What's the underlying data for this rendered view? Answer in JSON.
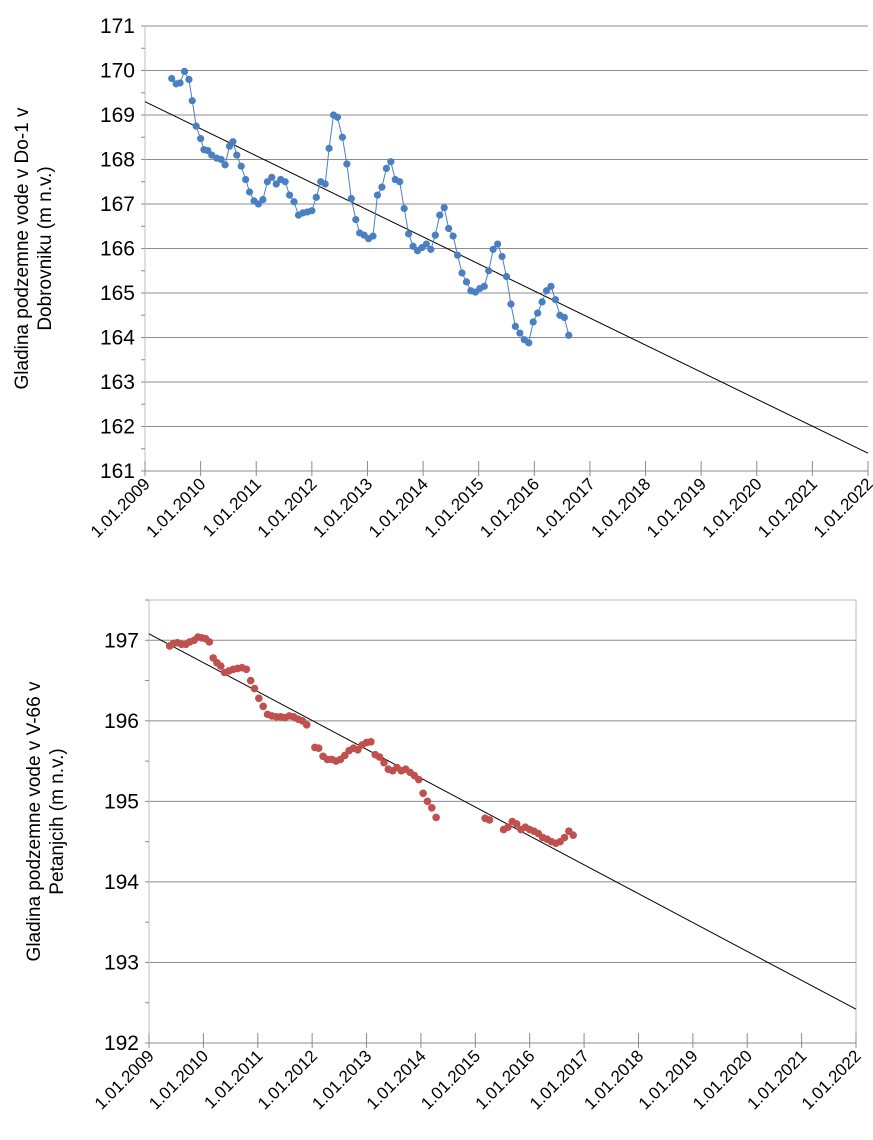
{
  "chart_data": [
    {
      "type": "scatter",
      "ylabel_lines": [
        "Gladina podzemne vode v Do-1 v",
        "Dobrovniku (m n.v.)"
      ],
      "ylim": [
        161,
        171
      ],
      "yticks": [
        161,
        162,
        163,
        164,
        165,
        166,
        167,
        168,
        169,
        170,
        171
      ],
      "xlim": [
        2009.0,
        2022.0
      ],
      "xticks": [
        "1.01.2009",
        "1.01.2010",
        "1.01.2011",
        "1.01.2012",
        "1.01.2013",
        "1.01.2014",
        "1.01.2015",
        "1.01.2016",
        "1.01.2017",
        "1.01.2018",
        "1.01.2019",
        "1.01.2020",
        "1.01.2021",
        "1.01.2022"
      ],
      "grid": "horizontal",
      "legend": "none",
      "series": [
        {
          "color": "#4a7fc1",
          "marker": "circle",
          "connected": true,
          "points": [
            [
              2009.48,
              169.82
            ],
            [
              2009.56,
              169.7
            ],
            [
              2009.63,
              169.72
            ],
            [
              2009.71,
              169.98
            ],
            [
              2009.79,
              169.8
            ],
            [
              2009.85,
              169.32
            ],
            [
              2009.92,
              168.75
            ],
            [
              2010.0,
              168.47
            ],
            [
              2010.06,
              168.22
            ],
            [
              2010.13,
              168.2
            ],
            [
              2010.2,
              168.1
            ],
            [
              2010.29,
              168.03
            ],
            [
              2010.37,
              168.0
            ],
            [
              2010.44,
              167.88
            ],
            [
              2010.52,
              168.3
            ],
            [
              2010.58,
              168.4
            ],
            [
              2010.65,
              168.1
            ],
            [
              2010.73,
              167.85
            ],
            [
              2010.81,
              167.55
            ],
            [
              2010.88,
              167.27
            ],
            [
              2010.96,
              167.07
            ],
            [
              2011.04,
              167.0
            ],
            [
              2011.12,
              167.1
            ],
            [
              2011.2,
              167.5
            ],
            [
              2011.28,
              167.6
            ],
            [
              2011.36,
              167.45
            ],
            [
              2011.44,
              167.55
            ],
            [
              2011.52,
              167.5
            ],
            [
              2011.6,
              167.2
            ],
            [
              2011.68,
              167.05
            ],
            [
              2011.76,
              166.75
            ],
            [
              2011.84,
              166.8
            ],
            [
              2011.92,
              166.82
            ],
            [
              2012.0,
              166.85
            ],
            [
              2012.08,
              167.15
            ],
            [
              2012.16,
              167.5
            ],
            [
              2012.24,
              167.45
            ],
            [
              2012.31,
              168.25
            ],
            [
              2012.39,
              169.0
            ],
            [
              2012.46,
              168.95
            ],
            [
              2012.55,
              168.5
            ],
            [
              2012.63,
              167.9
            ],
            [
              2012.71,
              167.12
            ],
            [
              2012.79,
              166.65
            ],
            [
              2012.86,
              166.35
            ],
            [
              2012.94,
              166.3
            ],
            [
              2013.02,
              166.22
            ],
            [
              2013.1,
              166.28
            ],
            [
              2013.18,
              167.2
            ],
            [
              2013.26,
              167.38
            ],
            [
              2013.34,
              167.8
            ],
            [
              2013.42,
              167.95
            ],
            [
              2013.5,
              167.55
            ],
            [
              2013.58,
              167.5
            ],
            [
              2013.66,
              166.9
            ],
            [
              2013.74,
              166.33
            ],
            [
              2013.82,
              166.05
            ],
            [
              2013.9,
              165.95
            ],
            [
              2013.98,
              166.02
            ],
            [
              2014.06,
              166.1
            ],
            [
              2014.14,
              165.98
            ],
            [
              2014.22,
              166.3
            ],
            [
              2014.3,
              166.75
            ],
            [
              2014.38,
              166.92
            ],
            [
              2014.46,
              166.45
            ],
            [
              2014.54,
              166.28
            ],
            [
              2014.62,
              165.85
            ],
            [
              2014.7,
              165.45
            ],
            [
              2014.78,
              165.25
            ],
            [
              2014.86,
              165.05
            ],
            [
              2014.94,
              165.02
            ],
            [
              2015.02,
              165.1
            ],
            [
              2015.1,
              165.15
            ],
            [
              2015.18,
              165.5
            ],
            [
              2015.26,
              165.98
            ],
            [
              2015.34,
              166.1
            ],
            [
              2015.42,
              165.82
            ],
            [
              2015.5,
              165.37
            ],
            [
              2015.58,
              164.75
            ],
            [
              2015.66,
              164.25
            ],
            [
              2015.74,
              164.1
            ],
            [
              2015.82,
              163.95
            ],
            [
              2015.9,
              163.88
            ],
            [
              2015.98,
              164.35
            ],
            [
              2016.06,
              164.55
            ],
            [
              2016.14,
              164.8
            ],
            [
              2016.22,
              165.05
            ],
            [
              2016.3,
              165.15
            ],
            [
              2016.38,
              164.85
            ],
            [
              2016.46,
              164.5
            ],
            [
              2016.54,
              164.45
            ],
            [
              2016.62,
              164.05
            ]
          ]
        }
      ],
      "trendline": {
        "color": "#000000",
        "x": [
          2009.0,
          2022.0
        ],
        "y": [
          169.3,
          161.4
        ]
      }
    },
    {
      "type": "scatter",
      "ylabel_lines": [
        "Gladina podzemne vode v V-66 v",
        "Petanjcih (m n.v.)"
      ],
      "ylim": [
        192,
        197.5
      ],
      "yticks": [
        192,
        193,
        194,
        195,
        196,
        197
      ],
      "xlim": [
        2009.0,
        2022.0
      ],
      "xticks": [
        "1.01.2009",
        "1.01.2010",
        "1.01.2011",
        "1.01.2012",
        "1.01.2013",
        "1.01.2014",
        "1.01.2015",
        "1.01.2016",
        "1.01.2017",
        "1.01.2018",
        "1.01.2019",
        "1.01.2020",
        "1.01.2021",
        "1.01.2022"
      ],
      "grid": "horizontal",
      "legend": "none",
      "series": [
        {
          "color": "#c0504d",
          "marker": "circle",
          "connected": false,
          "points": [
            [
              2009.38,
              196.93
            ],
            [
              2009.45,
              196.96
            ],
            [
              2009.52,
              196.97
            ],
            [
              2009.6,
              196.95
            ],
            [
              2009.68,
              196.95
            ],
            [
              2009.75,
              196.98
            ],
            [
              2009.83,
              197.0
            ],
            [
              2009.9,
              197.04
            ],
            [
              2009.97,
              197.03
            ],
            [
              2010.04,
              197.02
            ],
            [
              2010.11,
              196.98
            ],
            [
              2010.18,
              196.78
            ],
            [
              2010.25,
              196.72
            ],
            [
              2010.32,
              196.68
            ],
            [
              2010.39,
              196.6
            ],
            [
              2010.47,
              196.62
            ],
            [
              2010.55,
              196.64
            ],
            [
              2010.63,
              196.65
            ],
            [
              2010.71,
              196.66
            ],
            [
              2010.79,
              196.64
            ],
            [
              2010.87,
              196.5
            ],
            [
              2010.94,
              196.4
            ],
            [
              2011.02,
              196.28
            ],
            [
              2011.1,
              196.18
            ],
            [
              2011.18,
              196.08
            ],
            [
              2011.26,
              196.06
            ],
            [
              2011.34,
              196.05
            ],
            [
              2011.42,
              196.05
            ],
            [
              2011.5,
              196.04
            ],
            [
              2011.58,
              196.06
            ],
            [
              2011.66,
              196.05
            ],
            [
              2011.74,
              196.02
            ],
            [
              2011.82,
              196.0
            ],
            [
              2011.9,
              195.95
            ],
            [
              2012.05,
              195.67
            ],
            [
              2012.12,
              195.66
            ],
            [
              2012.2,
              195.56
            ],
            [
              2012.28,
              195.52
            ],
            [
              2012.36,
              195.52
            ],
            [
              2012.44,
              195.5
            ],
            [
              2012.52,
              195.52
            ],
            [
              2012.6,
              195.57
            ],
            [
              2012.68,
              195.63
            ],
            [
              2012.76,
              195.66
            ],
            [
              2012.84,
              195.64
            ],
            [
              2012.92,
              195.7
            ],
            [
              2013.0,
              195.73
            ],
            [
              2013.08,
              195.74
            ],
            [
              2013.16,
              195.58
            ],
            [
              2013.24,
              195.55
            ],
            [
              2013.32,
              195.48
            ],
            [
              2013.4,
              195.4
            ],
            [
              2013.48,
              195.38
            ],
            [
              2013.56,
              195.42
            ],
            [
              2013.64,
              195.38
            ],
            [
              2013.72,
              195.4
            ],
            [
              2013.8,
              195.36
            ],
            [
              2013.88,
              195.32
            ],
            [
              2013.96,
              195.27
            ],
            [
              2014.04,
              195.1
            ],
            [
              2014.12,
              195.0
            ],
            [
              2014.2,
              194.92
            ],
            [
              2014.28,
              194.8
            ],
            [
              2015.18,
              194.79
            ],
            [
              2015.26,
              194.77
            ],
            [
              2015.52,
              194.65
            ],
            [
              2015.6,
              194.68
            ],
            [
              2015.68,
              194.75
            ],
            [
              2015.76,
              194.72
            ],
            [
              2015.84,
              194.65
            ],
            [
              2015.92,
              194.68
            ],
            [
              2016.0,
              194.65
            ],
            [
              2016.08,
              194.63
            ],
            [
              2016.16,
              194.6
            ],
            [
              2016.24,
              194.55
            ],
            [
              2016.32,
              194.53
            ],
            [
              2016.4,
              194.5
            ],
            [
              2016.48,
              194.48
            ],
            [
              2016.56,
              194.5
            ],
            [
              2016.64,
              194.55
            ],
            [
              2016.72,
              194.63
            ],
            [
              2016.8,
              194.58
            ]
          ]
        }
      ],
      "trendline": {
        "color": "#000000",
        "x": [
          2009.0,
          2022.0
        ],
        "y": [
          197.08,
          192.42
        ]
      }
    }
  ]
}
